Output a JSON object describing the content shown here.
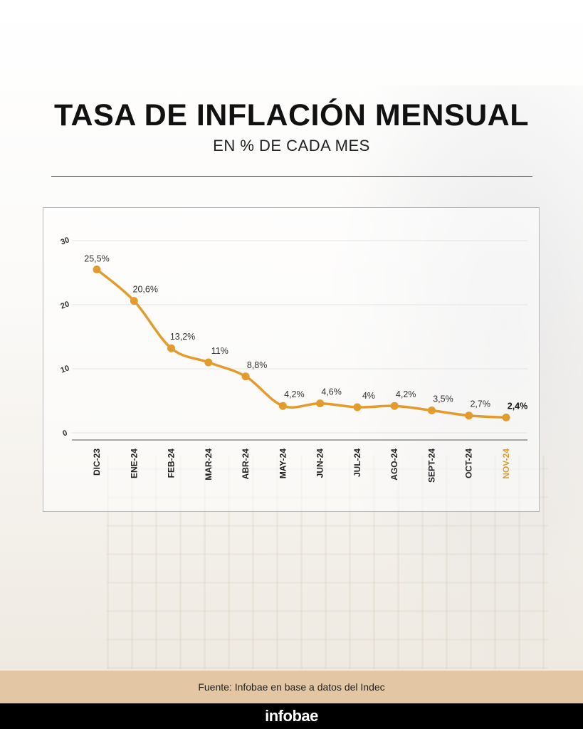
{
  "header": {
    "title": "TASA DE INFLACIÓN MENSUAL",
    "subtitle": "EN % DE CADA MES"
  },
  "footer": {
    "source": "Fuente: Infobae en base a datos del Indec",
    "brand": "infobae"
  },
  "colors": {
    "line": "#E39B2C",
    "highlight_label": "#E39B2C",
    "footer_band": "#E3C6A4"
  },
  "chart_data": {
    "type": "line",
    "categories": [
      "DIC-23",
      "ENE-24",
      "FEB-24",
      "MAR-24",
      "ABR-24",
      "MAY-24",
      "JUN-24",
      "JUL-24",
      "AGO-24",
      "SEPT-24",
      "OCT-24",
      "NOV-24"
    ],
    "values": [
      25.5,
      20.6,
      13.2,
      11,
      8.8,
      4.2,
      4.6,
      4,
      4.2,
      3.5,
      2.7,
      2.4
    ],
    "data_labels": [
      "25,5%",
      "20,6%",
      "13,2%",
      "11%",
      "8,8%",
      "4,2%",
      "4,6%",
      "4%",
      "4,2%",
      "3,5%",
      "2,7%",
      "2,4%"
    ],
    "highlight_index": 11,
    "ylim": [
      0,
      30
    ],
    "yticks": [
      0,
      10,
      20,
      30
    ],
    "grid": true,
    "legend": "none"
  }
}
